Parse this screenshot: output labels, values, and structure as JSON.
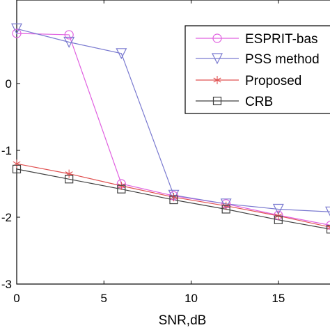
{
  "chart_data": {
    "type": "line",
    "title": "",
    "xlabel": "SNR,dB",
    "ylabel": "",
    "x": [
      0,
      3,
      6,
      9,
      12,
      15,
      18
    ],
    "xlim": [
      0,
      18
    ],
    "ylim": [
      -3,
      1.25
    ],
    "xticks": [
      0,
      5,
      10,
      15
    ],
    "yticks": [
      0,
      -1,
      -2,
      -3
    ],
    "grid": false,
    "legend_position": "top-right",
    "series": [
      {
        "name": "ESPRIT-bas",
        "color": "#e060e0",
        "marker": "circle",
        "values": [
          0.75,
          0.73,
          -1.5,
          -1.68,
          -1.8,
          -1.97,
          -2.12
        ]
      },
      {
        "name": "PSS method",
        "color": "#7a7ad0",
        "marker": "triangle-down",
        "values": [
          0.82,
          0.62,
          0.45,
          -1.67,
          -1.8,
          -1.88,
          -1.92
        ]
      },
      {
        "name": "Proposed",
        "color": "#e05050",
        "marker": "asterisk",
        "values": [
          -1.2,
          -1.35,
          -1.53,
          -1.7,
          -1.83,
          -1.98,
          -2.15
        ]
      },
      {
        "name": "CRB",
        "color": "#404040",
        "marker": "square",
        "values": [
          -1.28,
          -1.43,
          -1.58,
          -1.74,
          -1.88,
          -2.04,
          -2.18
        ]
      }
    ]
  }
}
